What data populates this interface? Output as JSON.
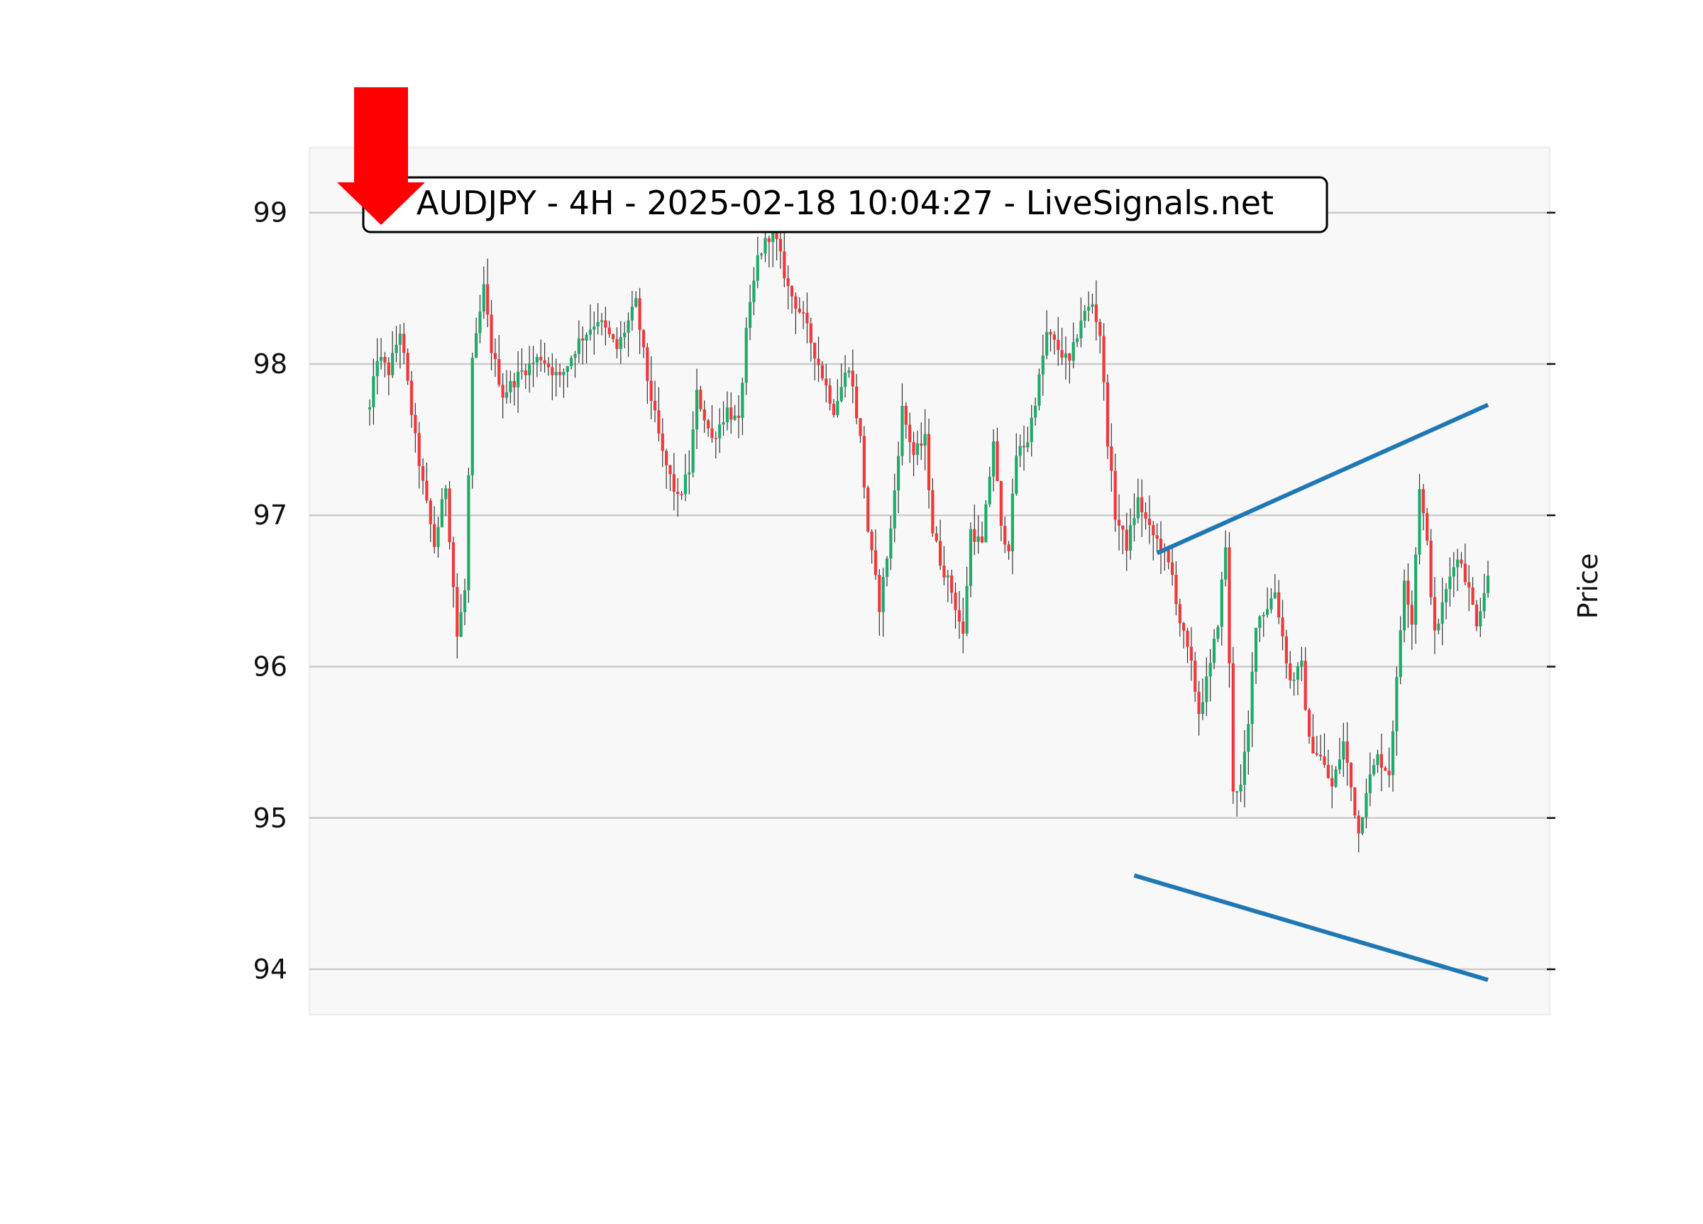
{
  "chart_data": {
    "type": "candlestick",
    "title": "AUDJPY - 4H - 2025-02-18 10:04:27 - LiveSignals.net",
    "ylabel": "Price",
    "xlabel": "",
    "ylim": [
      93.7,
      99.43
    ],
    "yticks": [
      94,
      95,
      96,
      97,
      98,
      99
    ],
    "grid": "horizontal",
    "colors": {
      "up": "#1faa6b",
      "down": "#f0383a",
      "wick": "#333333",
      "trendline": "#1f77b4",
      "arrow": "#ff0000",
      "plot_bg": "#f8f8f8",
      "grid": "#cccccc"
    },
    "anchors": [
      [
        0,
        97.7
      ],
      [
        2,
        98.05
      ],
      [
        5,
        97.95
      ],
      [
        8,
        98.22
      ],
      [
        12,
        97.5
      ],
      [
        14,
        97.2
      ],
      [
        17,
        96.8
      ],
      [
        20,
        97.2
      ],
      [
        23,
        96.2
      ],
      [
        25,
        96.5
      ],
      [
        27,
        98.0
      ],
      [
        30,
        98.5
      ],
      [
        32,
        98.1
      ],
      [
        35,
        97.8
      ],
      [
        40,
        97.95
      ],
      [
        45,
        98.05
      ],
      [
        50,
        97.9
      ],
      [
        55,
        98.15
      ],
      [
        60,
        98.3
      ],
      [
        65,
        98.1
      ],
      [
        70,
        98.4
      ],
      [
        73,
        97.9
      ],
      [
        77,
        97.4
      ],
      [
        81,
        97.1
      ],
      [
        84,
        97.3
      ],
      [
        86,
        97.8
      ],
      [
        90,
        97.5
      ],
      [
        94,
        97.7
      ],
      [
        97,
        97.6
      ],
      [
        99,
        98.2
      ],
      [
        102,
        98.7
      ],
      [
        106,
        98.9
      ],
      [
        110,
        98.5
      ],
      [
        114,
        98.3
      ],
      [
        118,
        98.0
      ],
      [
        122,
        97.7
      ],
      [
        126,
        98.0
      ],
      [
        129,
        97.5
      ],
      [
        131,
        96.9
      ],
      [
        134,
        96.4
      ],
      [
        137,
        96.9
      ],
      [
        140,
        97.7
      ],
      [
        143,
        97.4
      ],
      [
        146,
        97.5
      ],
      [
        148,
        96.9
      ],
      [
        150,
        96.7
      ],
      [
        153,
        96.5
      ],
      [
        156,
        96.2
      ],
      [
        158,
        96.9
      ],
      [
        161,
        96.8
      ],
      [
        164,
        97.5
      ],
      [
        166,
        96.9
      ],
      [
        168,
        96.8
      ],
      [
        170,
        97.4
      ],
      [
        173,
        97.5
      ],
      [
        176,
        97.9
      ],
      [
        178,
        98.2
      ],
      [
        181,
        98.1
      ],
      [
        184,
        98.0
      ],
      [
        187,
        98.3
      ],
      [
        190,
        98.4
      ],
      [
        192,
        98.2
      ],
      [
        194,
        97.5
      ],
      [
        196,
        97.0
      ],
      [
        199,
        96.8
      ],
      [
        202,
        97.1
      ],
      [
        205,
        96.9
      ],
      [
        208,
        96.8
      ],
      [
        211,
        96.6
      ],
      [
        213,
        96.3
      ],
      [
        216,
        96.0
      ],
      [
        218,
        95.7
      ],
      [
        221,
        96.0
      ],
      [
        223,
        96.3
      ],
      [
        225,
        96.8
      ],
      [
        227,
        95.2
      ],
      [
        229,
        95.2
      ],
      [
        231,
        95.6
      ],
      [
        233,
        96.3
      ],
      [
        236,
        96.4
      ],
      [
        238,
        96.5
      ],
      [
        240,
        96.2
      ],
      [
        242,
        95.9
      ],
      [
        245,
        96.0
      ],
      [
        247,
        95.5
      ],
      [
        250,
        95.4
      ],
      [
        253,
        95.2
      ],
      [
        256,
        95.5
      ],
      [
        258,
        95.2
      ],
      [
        260,
        94.9
      ],
      [
        262,
        95.2
      ],
      [
        265,
        95.4
      ],
      [
        268,
        95.3
      ],
      [
        270,
        95.9
      ],
      [
        272,
        96.6
      ],
      [
        274,
        96.3
      ],
      [
        276,
        97.2
      ],
      [
        278,
        96.8
      ],
      [
        280,
        96.2
      ],
      [
        283,
        96.5
      ],
      [
        285,
        96.7
      ],
      [
        287,
        96.7
      ],
      [
        289,
        96.5
      ],
      [
        291,
        96.3
      ],
      [
        293,
        96.5
      ],
      [
        294,
        96.6
      ]
    ],
    "trendlines": [
      {
        "points": [
          [
            207,
            96.75
          ],
          [
            294,
            97.73
          ]
        ]
      },
      {
        "points": [
          [
            201,
            94.62
          ],
          [
            294,
            93.93
          ]
        ]
      }
    ],
    "annotations": [
      {
        "type": "down-arrow",
        "x": 0,
        "color": "#ff0000"
      }
    ]
  }
}
